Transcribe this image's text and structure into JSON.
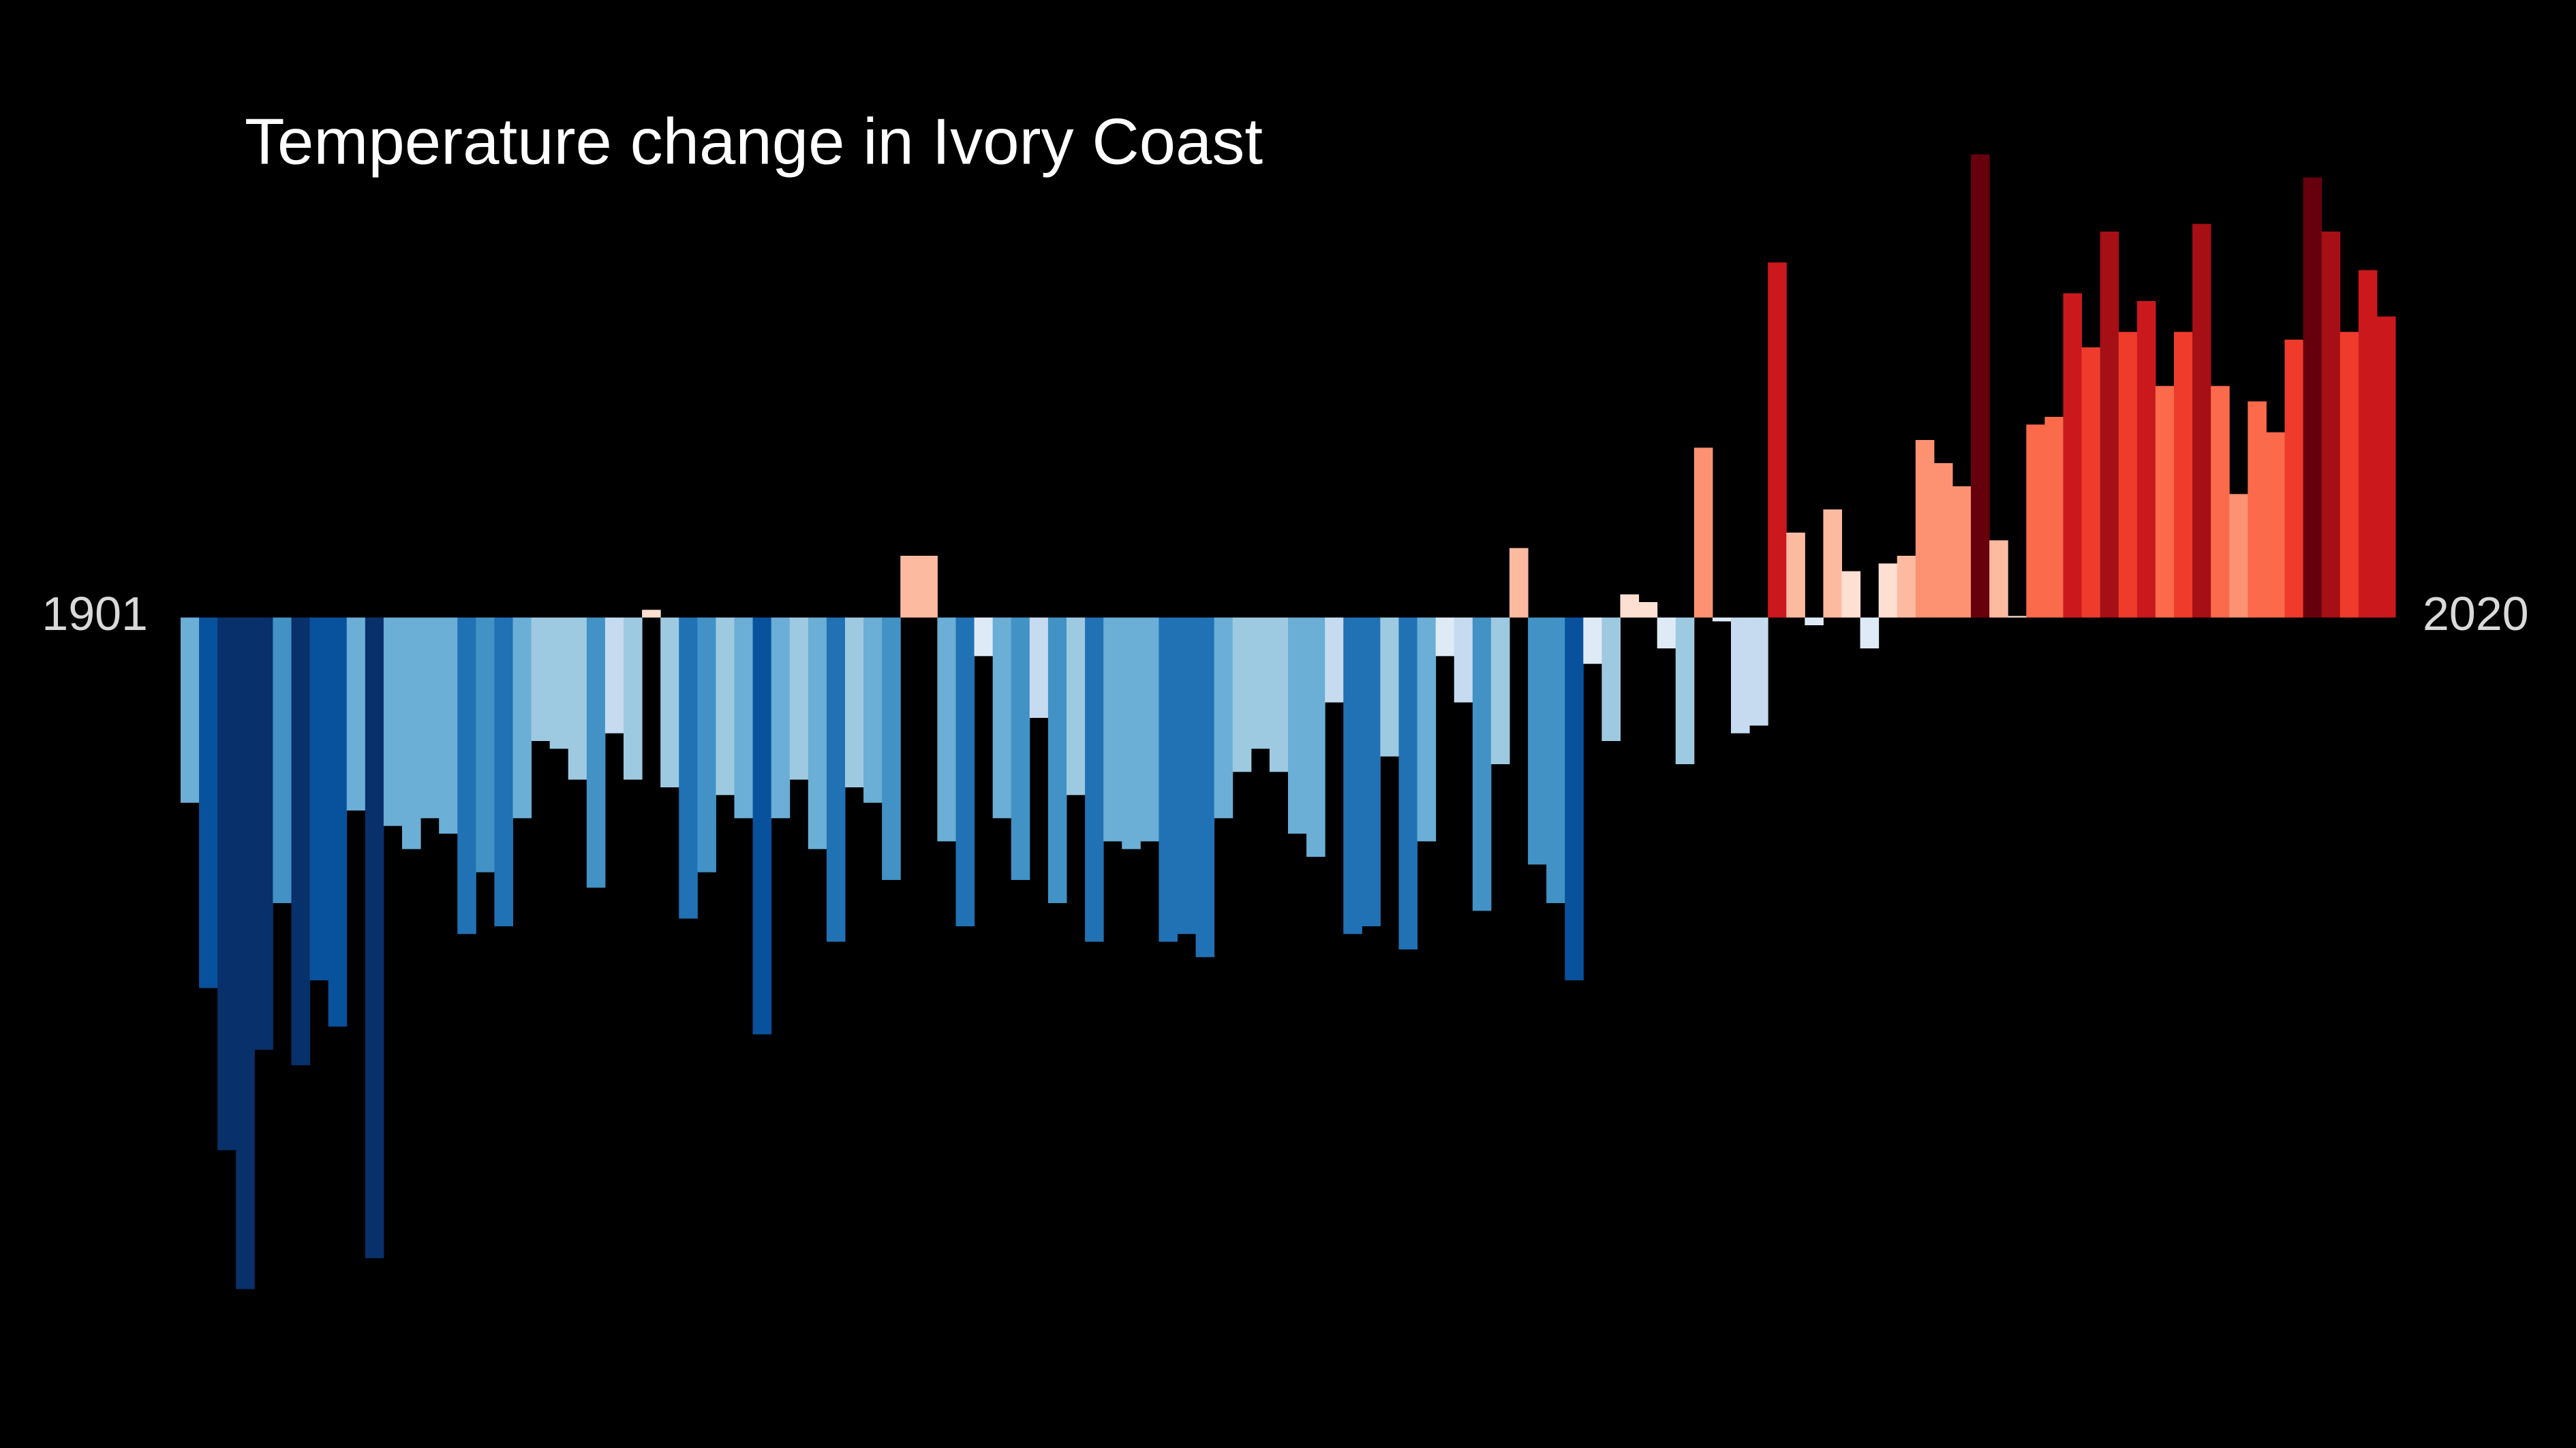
{
  "chart_data": {
    "type": "bar",
    "title": "Temperature change in Ivory Coast",
    "categories": [
      "1901",
      null,
      null,
      null,
      null,
      null,
      null,
      null,
      null,
      null,
      null,
      null,
      null,
      null,
      null,
      null,
      null,
      null,
      null,
      null,
      null,
      null,
      null,
      null,
      null,
      null,
      null,
      null,
      null,
      null,
      null,
      null,
      null,
      null,
      null,
      null,
      null,
      null,
      null,
      null,
      null,
      null,
      null,
      null,
      null,
      null,
      null,
      null,
      null,
      null,
      null,
      null,
      null,
      null,
      null,
      null,
      null,
      null,
      null,
      null,
      null,
      null,
      null,
      null,
      null,
      null,
      null,
      null,
      null,
      null,
      null,
      null,
      null,
      null,
      null,
      null,
      null,
      null,
      null,
      null,
      null,
      null,
      null,
      null,
      null,
      null,
      null,
      null,
      null,
      null,
      null,
      null,
      null,
      null,
      null,
      null,
      null,
      null,
      null,
      null,
      null,
      null,
      null,
      null,
      null,
      null,
      null,
      null,
      null,
      null,
      null,
      null,
      null,
      null,
      null,
      null,
      null,
      null,
      null,
      "2020"
    ],
    "values": [
      -0.24,
      -0.48,
      -0.69,
      -0.87,
      -0.56,
      -0.37,
      -0.58,
      -0.47,
      -0.53,
      -0.25,
      -0.83,
      -0.27,
      -0.3,
      -0.26,
      -0.28,
      -0.41,
      -0.33,
      -0.4,
      -0.26,
      -0.16,
      -0.17,
      -0.21,
      -0.35,
      -0.15,
      -0.21,
      0.01,
      -0.22,
      -0.39,
      -0.33,
      -0.23,
      -0.26,
      -0.54,
      -0.26,
      -0.21,
      -0.3,
      -0.42,
      -0.22,
      -0.24,
      -0.34,
      0.08,
      0.08,
      -0.29,
      -0.4,
      -0.05,
      -0.26,
      -0.34,
      -0.13,
      -0.37,
      -0.23,
      -0.42,
      -0.29,
      -0.3,
      -0.29,
      -0.42,
      -0.41,
      -0.44,
      -0.26,
      -0.2,
      -0.17,
      -0.2,
      -0.28,
      -0.31,
      -0.11,
      -0.41,
      -0.4,
      -0.18,
      -0.43,
      -0.29,
      -0.05,
      -0.11,
      -0.38,
      -0.19,
      0.09,
      -0.32,
      -0.37,
      -0.47,
      -0.06,
      -0.16,
      0.03,
      0.02,
      -0.04,
      -0.19,
      0.22,
      -0.005,
      -0.15,
      -0.14,
      0.46,
      0.11,
      -0.01,
      0.14,
      0.06,
      -0.04,
      0.07,
      0.08,
      0.23,
      0.2,
      0.17,
      0.6,
      0.1,
      0.002,
      0.25,
      0.26,
      0.42,
      0.35,
      0.5,
      0.37,
      0.41,
      0.3,
      0.37,
      0.51,
      0.3,
      0.16,
      0.28,
      0.24,
      0.36,
      0.57,
      0.5,
      0.37,
      0.45,
      0.39
    ],
    "ylim": [
      -1.0,
      0.8
    ]
  }
}
